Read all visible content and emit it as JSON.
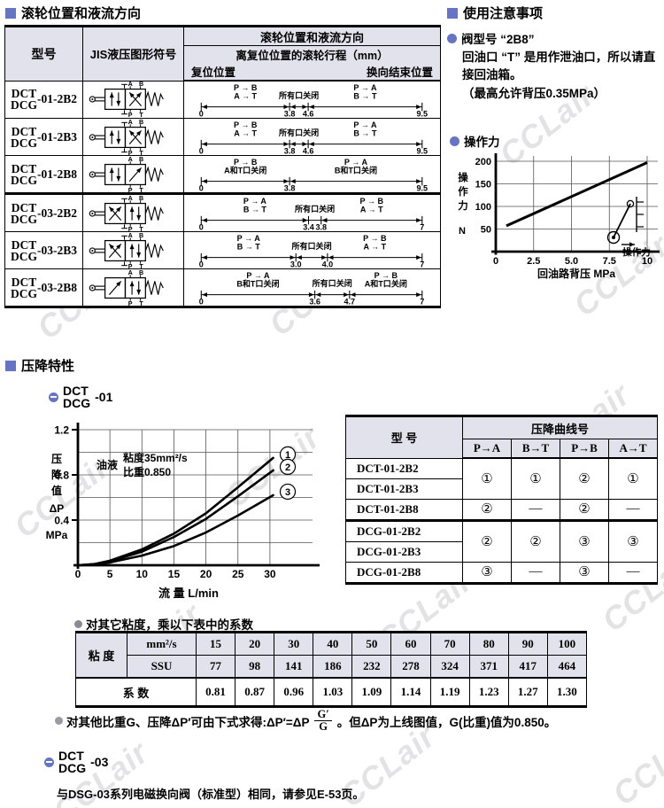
{
  "watermark": {
    "text": "CCLair",
    "color": "#c9c9cc"
  },
  "colors": {
    "accent": "#6674c1",
    "header_bg": "#e2e2ec"
  },
  "section_roller": {
    "title": "滚轮位置和液流方向",
    "table": {
      "headers": {
        "model": "型号",
        "symbol": "JIS液压图形符号",
        "flow": "滚轮位置和液流方向",
        "travel": "离复位位置的滚轮行程（mm）",
        "reset": "复位位置",
        "end": "换向结束位置"
      },
      "rows": [
        {
          "model_top": "DCT",
          "model_bottom": "DCG",
          "suffix": "-01-2B2",
          "group_start": false,
          "symbol": {
            "left": "parallel",
            "right": "cross",
            "marks": true,
            "ports_top": [
              "A",
              "B"
            ],
            "ports_bottom": [
              "P",
              "T"
            ]
          },
          "travel": {
            "max": 9.5,
            "ticks": [
              "0",
              "3.8",
              "4.6",
              "9.5"
            ],
            "segments": [
              {
                "l1": "P → B",
                "l2": "A → T"
              },
              {
                "l1": "所有口关闭",
                "l2": ""
              },
              {
                "l1": "P → A",
                "l2": "B → T"
              }
            ]
          }
        },
        {
          "model_top": "DCT",
          "model_bottom": "DCG",
          "suffix": "-01-2B3",
          "group_start": false,
          "symbol": {
            "left": "parallel",
            "right": "cross",
            "marks": true,
            "ports_top": [
              "A",
              "B"
            ],
            "ports_bottom": [
              "P",
              "T"
            ]
          },
          "travel": {
            "max": 9.5,
            "ticks": [
              "0",
              "3.8",
              "4.6",
              "9.5"
            ],
            "segments": [
              {
                "l1": "P → B",
                "l2": "A → T"
              },
              {
                "l1": "所有口关闭",
                "l2": ""
              },
              {
                "l1": "P → A",
                "l2": "B → T"
              }
            ]
          }
        },
        {
          "model_top": "DCT",
          "model_bottom": "DCG",
          "suffix": "-01-2B8",
          "group_start": false,
          "symbol": {
            "left": "parallel",
            "right": "diag",
            "marks": false,
            "ports_top": [
              "A",
              "B"
            ],
            "ports_bottom": [
              "P",
              "T"
            ]
          },
          "travel": {
            "max": 9.5,
            "ticks": [
              "0",
              "3.8",
              "9.5"
            ],
            "segments": [
              {
                "l1": "P → B",
                "l2": "A和T口关闭"
              },
              {
                "l1": "P → A",
                "l2": "B和T口关闭"
              }
            ]
          }
        },
        {
          "model_top": "DCT",
          "model_bottom": "DCG",
          "suffix": "-03-2B2",
          "group_start": true,
          "symbol": {
            "left": "cross",
            "right": "parallel",
            "marks": true,
            "ports_top": [
              "A",
              "B"
            ],
            "ports_bottom": [
              "P",
              "T"
            ]
          },
          "travel": {
            "max": 7,
            "ticks": [
              "0",
              "3.4",
              "3.8",
              "7"
            ],
            "segments": [
              {
                "l1": "P → A",
                "l2": "B → T"
              },
              {
                "l1": "所有口关闭",
                "l2": ""
              },
              {
                "l1": "P → B",
                "l2": "A → T"
              }
            ]
          }
        },
        {
          "model_top": "DCT",
          "model_bottom": "DCG",
          "suffix": "-03-2B3",
          "group_start": false,
          "symbol": {
            "left": "cross",
            "right": "parallel",
            "marks": true,
            "ports_top": [
              "A",
              "B"
            ],
            "ports_bottom": [
              "P",
              "T"
            ]
          },
          "travel": {
            "max": 7,
            "ticks": [
              "0",
              "3.0",
              "4.0",
              "7"
            ],
            "segments": [
              {
                "l1": "P → A",
                "l2": "B → T"
              },
              {
                "l1": "所有口关闭",
                "l2": ""
              },
              {
                "l1": "P → B",
                "l2": "A → T"
              }
            ]
          }
        },
        {
          "model_top": "DCT",
          "model_bottom": "DCG",
          "suffix": "-03-2B8",
          "group_start": false,
          "symbol": {
            "left": "diag",
            "right": "parallel",
            "marks": false,
            "ports_top": [
              "A",
              "B"
            ],
            "ports_bottom": [
              "P",
              "T"
            ]
          },
          "travel": {
            "max": 7,
            "ticks": [
              "0",
              "3.6",
              "4.7",
              "7"
            ],
            "segments": [
              {
                "l1": "P → A",
                "l2": "B和T口关闭"
              },
              {
                "l1": "所有口关闭",
                "l2": ""
              },
              {
                "l1": "P → B",
                "l2": "A和T口关闭"
              }
            ]
          }
        }
      ]
    }
  },
  "notes": {
    "title": "使用注意事项",
    "item_title": "阀型号 “2B8”",
    "lines": [
      "回油口 “T” 是用作泄油口，所以请直",
      "接回油箱。",
      "（最高允许背压0.35MPa）"
    ]
  },
  "section_dp": {
    "title": "压降特性",
    "badge01": {
      "top": "DCT",
      "bottom": "DCG",
      "suffix": "-01"
    },
    "badge03": {
      "top": "DCT",
      "bottom": "DCG",
      "suffix": "-03"
    },
    "note03": "与DSG-03系列电磁换向阀（标准型）相同，请参见E-53页。"
  },
  "chart_data": [
    {
      "type": "line",
      "title": "操作力",
      "xlabel": "回油路背压 MPa",
      "ylabel": "操作力 N",
      "xticks": [
        "0",
        "2.5",
        "5.0",
        "7.5",
        "10"
      ],
      "xtick_values": [
        0,
        2.5,
        5.0,
        7.5,
        10
      ],
      "yticks": [
        50,
        100,
        150,
        200
      ],
      "xlim": [
        0,
        10.5
      ],
      "ylim": [
        0,
        215
      ],
      "grid": true,
      "annotation": "操作力",
      "series": [
        {
          "name": "操作力",
          "x": [
            0.7,
            10
          ],
          "y": [
            57,
            197
          ]
        }
      ]
    },
    {
      "type": "line",
      "title": "DCT/DCG-01 压降特性",
      "xlabel": "流 量 L/min",
      "ylabel": "压降值 ΔP MPa",
      "xticks": [
        0,
        5,
        10,
        15,
        20,
        25,
        30
      ],
      "yticks": [
        0.4,
        0.8,
        1.2
      ],
      "grid_y": [
        0.2,
        0.4,
        0.6,
        0.8,
        1.0,
        1.2
      ],
      "xlim": [
        0,
        31
      ],
      "ylim": [
        0,
        1.25
      ],
      "annotation": [
        "油液",
        "粘度35mm²/s",
        "比重0.850"
      ],
      "series": [
        {
          "num": "1",
          "symbol": "①",
          "x": [
            0,
            2.5,
            5,
            10,
            15,
            20,
            25,
            30.5
          ],
          "y": [
            0,
            0.01,
            0.04,
            0.14,
            0.28,
            0.46,
            0.69,
            0.95
          ]
        },
        {
          "num": "2",
          "symbol": "②",
          "x": [
            0,
            2.5,
            5,
            10,
            15,
            20,
            25,
            30.5
          ],
          "y": [
            0,
            0.008,
            0.035,
            0.12,
            0.25,
            0.41,
            0.61,
            0.84
          ]
        },
        {
          "num": "3",
          "symbol": "③",
          "x": [
            0,
            2.5,
            5,
            10,
            15,
            20,
            25,
            30.5
          ],
          "y": [
            0,
            0.005,
            0.025,
            0.085,
            0.17,
            0.29,
            0.44,
            0.62
          ]
        }
      ]
    }
  ],
  "curve_table": {
    "headers": {
      "model": "型 号",
      "group": "压降曲线号",
      "cols": [
        "P→A",
        "B→T",
        "P→B",
        "A→T"
      ]
    },
    "groups": [
      {
        "models": [
          "DCT-01-2B2",
          "DCT-01-2B3"
        ],
        "values": [
          "①",
          "①",
          "②",
          "①"
        ]
      },
      {
        "models": [
          "DCT-01-2B8"
        ],
        "values": [
          "②",
          "—",
          "②",
          "—"
        ]
      },
      {
        "models": [
          "DCG-01-2B2",
          "DCG-01-2B3"
        ],
        "values": [
          "②",
          "②",
          "③",
          "③"
        ]
      },
      {
        "models": [
          "DCG-01-2B8"
        ],
        "values": [
          "③",
          "—",
          "③",
          "—"
        ]
      }
    ]
  },
  "viscosity": {
    "note": "对其它粘度，乘以下表中的系数",
    "row_label": "粘 度",
    "unit1": "mm²/s",
    "unit2": "SSU",
    "coef_label": "系 数",
    "mm2s": [
      "15",
      "20",
      "30",
      "40",
      "50",
      "60",
      "70",
      "80",
      "90",
      "100"
    ],
    "ssu": [
      "77",
      "98",
      "141",
      "186",
      "232",
      "278",
      "324",
      "371",
      "417",
      "464"
    ],
    "coef": [
      "0.81",
      "0.87",
      "0.96",
      "1.03",
      "1.09",
      "1.14",
      "1.19",
      "1.23",
      "1.27",
      "1.30"
    ]
  },
  "formula": {
    "pre": "对其他比重G、压降ΔP′可由下式求得:ΔP′=ΔP",
    "frac_top": "G′",
    "frac_bot": "G",
    "post": "。但ΔP为上线图值，G(比重)值为0.850。"
  }
}
